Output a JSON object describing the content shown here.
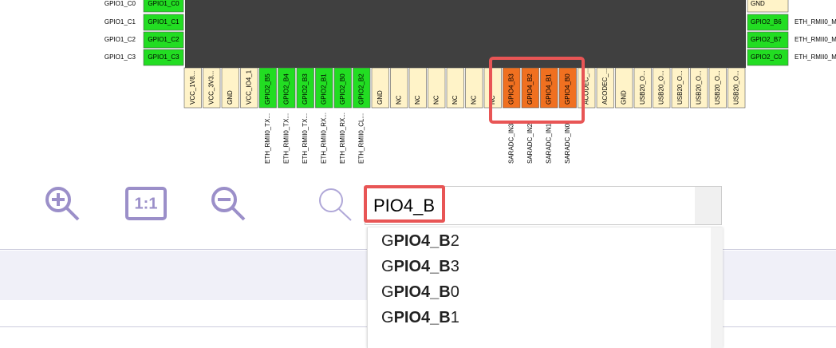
{
  "left_pins": [
    {
      "outer": "GPIO1_C0",
      "box": "GPIO1_C0"
    },
    {
      "outer": "GPIO1_C1",
      "box": "GPIO1_C1"
    },
    {
      "outer": "GPIO1_C2",
      "box": "GPIO1_C2"
    },
    {
      "outer": "GPIO1_C3",
      "box": "GPIO1_C3"
    }
  ],
  "right_pins": [
    {
      "box": "GND",
      "color": "#fff3c8"
    },
    {
      "box": "GPIO2_B6",
      "color": "#22dd22",
      "outer": "ETH_RMII0_M"
    },
    {
      "box": "GPIO2_B7",
      "color": "#22dd22",
      "outer": "ETH_RMII0_M"
    },
    {
      "box": "GPIO2_C0",
      "color": "#22dd22",
      "outer": "ETH_RMII0_M"
    }
  ],
  "bottom_pins": [
    {
      "label": "VCC_1V8...",
      "color": "#fff3c8"
    },
    {
      "label": "VCC_3V3...",
      "color": "#fff3c8"
    },
    {
      "label": "GND",
      "color": "#fff3c8"
    },
    {
      "label": "VCC_IO4_1",
      "color": "#fff3c8"
    },
    {
      "label": "GPIO2_B5",
      "color": "#22dd22",
      "outer": "ETH_RMII0_TX..."
    },
    {
      "label": "GPIO2_B4",
      "color": "#22dd22",
      "outer": "ETH_RMII0_TX..."
    },
    {
      "label": "GPIO2_B3",
      "color": "#22dd22",
      "outer": "ETH_RMII0_TX..."
    },
    {
      "label": "GPIO2_B1",
      "color": "#22dd22",
      "outer": "ETH_RMII0_RX..."
    },
    {
      "label": "GPIO2_B0",
      "color": "#22dd22",
      "outer": "ETH_RMII0_RX..."
    },
    {
      "label": "GPIO2_B2",
      "color": "#22dd22",
      "outer": "ETH_RMII0_CL..."
    },
    {
      "label": "GND",
      "color": "#fff3c8"
    },
    {
      "label": "NC",
      "color": "#fff3c8"
    },
    {
      "label": "NC",
      "color": "#fff3c8"
    },
    {
      "label": "NC",
      "color": "#fff3c8"
    },
    {
      "label": "NC",
      "color": "#fff3c8"
    },
    {
      "label": "NC",
      "color": "#fff3c8"
    },
    {
      "label": "NC",
      "color": "#fff3c8"
    },
    {
      "label": "GPIO4_B3",
      "color": "#f07020",
      "outer": "SARADC_IN3"
    },
    {
      "label": "GPIO4_B2",
      "color": "#f07020",
      "outer": "SARADC_IN2"
    },
    {
      "label": "GPIO4_B1",
      "color": "#f07020",
      "outer": "SARADC_IN1"
    },
    {
      "label": "GPIO4_B0",
      "color": "#f07020",
      "outer": "SARADC_IN0"
    },
    {
      "label": "ACODEC_...",
      "color": "#fff3c8"
    },
    {
      "label": "ACODEC_...",
      "color": "#fff3c8"
    },
    {
      "label": "GND",
      "color": "#fff3c8"
    },
    {
      "label": "USB20_O...",
      "color": "#fff3c8"
    },
    {
      "label": "USB20_O...",
      "color": "#fff3c8"
    },
    {
      "label": "USB20_O...",
      "color": "#fff3c8"
    },
    {
      "label": "USB20_O...",
      "color": "#fff3c8"
    },
    {
      "label": "USB20_O...",
      "color": "#fff3c8"
    },
    {
      "label": "USB20_O...",
      "color": "#fff3c8"
    }
  ],
  "toolbar": {
    "actual_size_label": "1:1"
  },
  "search": {
    "query": "PIO4_B",
    "results": [
      "GPIO4_B2",
      "GPIO4_B3",
      "GPIO4_B0",
      "GPIO4_B1"
    ]
  }
}
